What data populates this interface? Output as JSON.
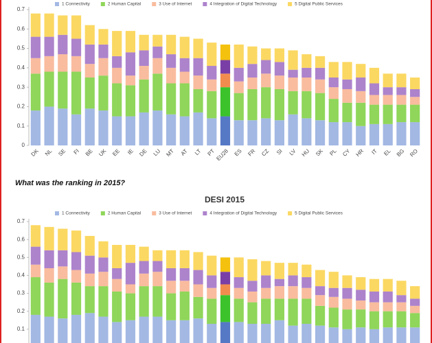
{
  "question": "What was the ranking in 2015?",
  "chart_data": [
    {
      "type": "stacked_bar",
      "categories": [
        "DK",
        "NL",
        "SE",
        "FI",
        "BE",
        "UK",
        "EE",
        "IE",
        "DE",
        "LU",
        "MT",
        "AT",
        "LT",
        "PT",
        "EU28",
        "ES",
        "FR",
        "CZ",
        "SI",
        "LV",
        "HU",
        "SK",
        "PL",
        "CY",
        "HR",
        "IT",
        "EL",
        "BG",
        "RO"
      ],
      "ylim": [
        0,
        0.7
      ],
      "yticks": [
        0,
        0.1,
        0.2,
        0.3,
        0.4,
        0.5,
        0.6,
        0.7
      ],
      "grid": false,
      "legend": "top",
      "highlight": 14,
      "series": [
        {
          "name": "1 Connectivity",
          "color": "#a3b8e3",
          "highlight_color": "#5679c6",
          "values": [
            0.18,
            0.2,
            0.19,
            0.16,
            0.19,
            0.18,
            0.15,
            0.15,
            0.17,
            0.18,
            0.16,
            0.15,
            0.17,
            0.14,
            0.15,
            0.13,
            0.13,
            0.14,
            0.13,
            0.16,
            0.14,
            0.13,
            0.12,
            0.12,
            0.1,
            0.11,
            0.11,
            0.12,
            0.12
          ]
        },
        {
          "name": "2 Human Capital",
          "color": "#8fd65a",
          "highlight_color": "#3cc22a",
          "values": [
            0.19,
            0.18,
            0.19,
            0.22,
            0.16,
            0.18,
            0.17,
            0.16,
            0.17,
            0.19,
            0.16,
            0.17,
            0.12,
            0.14,
            0.15,
            0.14,
            0.16,
            0.16,
            0.16,
            0.12,
            0.14,
            0.14,
            0.12,
            0.1,
            0.12,
            0.1,
            0.1,
            0.09,
            0.09
          ]
        },
        {
          "name": "3 Use of Internet",
          "color": "#f9bc9e",
          "highlight_color": "#f28c4e",
          "values": [
            0.08,
            0.08,
            0.09,
            0.08,
            0.07,
            0.09,
            0.08,
            0.05,
            0.07,
            0.08,
            0.08,
            0.06,
            0.07,
            0.06,
            0.07,
            0.06,
            0.06,
            0.07,
            0.07,
            0.07,
            0.07,
            0.07,
            0.06,
            0.07,
            0.06,
            0.05,
            0.05,
            0.05,
            0.04
          ]
        },
        {
          "name": "4 Integration of Digital Technology",
          "color": "#ad83cc",
          "highlight_color": "#7a3fa6",
          "values": [
            0.11,
            0.1,
            0.1,
            0.09,
            0.1,
            0.07,
            0.06,
            0.12,
            0.08,
            0.06,
            0.07,
            0.07,
            0.09,
            0.07,
            0.07,
            0.07,
            0.07,
            0.07,
            0.07,
            0.04,
            0.05,
            0.06,
            0.05,
            0.05,
            0.07,
            0.06,
            0.04,
            0.04,
            0.04
          ]
        },
        {
          "name": "5 Digital Public Services",
          "color": "#fbd862",
          "highlight_color": "#f4c10f",
          "values": [
            0.12,
            0.12,
            0.1,
            0.12,
            0.1,
            0.08,
            0.13,
            0.11,
            0.08,
            0.06,
            0.1,
            0.11,
            0.1,
            0.12,
            0.08,
            0.12,
            0.09,
            0.06,
            0.07,
            0.1,
            0.07,
            0.06,
            0.08,
            0.09,
            0.07,
            0.08,
            0.07,
            0.07,
            0.06
          ]
        }
      ]
    },
    {
      "type": "stacked_bar",
      "title": "DESI 2015",
      "categories": [
        null,
        null,
        null,
        null,
        null,
        null,
        null,
        null,
        null,
        null,
        null,
        null,
        null,
        null,
        null,
        null,
        null,
        null,
        null,
        null,
        null,
        null,
        null,
        null,
        null,
        null,
        null,
        null,
        null
      ],
      "ylim": [
        0,
        0.7
      ],
      "yticks": [
        0.1,
        0.2,
        0.3,
        0.4,
        0.5,
        0.6,
        0.7
      ],
      "grid": false,
      "legend": "top",
      "highlight": 14,
      "series": [
        {
          "name": "1 Connectivity",
          "color": "#a3b8e3",
          "highlight_color": "#5679c6",
          "values": [
            0.18,
            0.17,
            0.16,
            0.18,
            0.19,
            0.17,
            0.14,
            0.15,
            0.17,
            0.17,
            0.15,
            0.15,
            0.16,
            0.13,
            0.14,
            0.14,
            0.13,
            0.13,
            0.15,
            0.12,
            0.13,
            0.12,
            0.11,
            0.1,
            0.11,
            0.1,
            0.11,
            0.11,
            0.11
          ]
        },
        {
          "name": "2 Human Capital",
          "color": "#8fd65a",
          "highlight_color": "#3cc22a",
          "values": [
            0.21,
            0.19,
            0.22,
            0.18,
            0.15,
            0.17,
            0.17,
            0.15,
            0.17,
            0.17,
            0.15,
            0.16,
            0.12,
            0.14,
            0.15,
            0.13,
            0.12,
            0.14,
            0.12,
            0.15,
            0.14,
            0.11,
            0.11,
            0.11,
            0.1,
            0.1,
            0.09,
            0.09,
            0.08
          ]
        },
        {
          "name": "3 Use of Internet",
          "color": "#f9bc9e",
          "highlight_color": "#f28c4e",
          "values": [
            0.07,
            0.08,
            0.07,
            0.07,
            0.07,
            0.08,
            0.07,
            0.05,
            0.07,
            0.08,
            0.07,
            0.06,
            0.07,
            0.06,
            0.06,
            0.06,
            0.06,
            0.06,
            0.07,
            0.07,
            0.06,
            0.06,
            0.06,
            0.06,
            0.05,
            0.05,
            0.05,
            0.05,
            0.04
          ]
        },
        {
          "name": "4 Integration of Digital Technology",
          "color": "#ad83cc",
          "highlight_color": "#7a3fa6",
          "values": [
            0.1,
            0.1,
            0.09,
            0.1,
            0.1,
            0.08,
            0.06,
            0.12,
            0.07,
            0.06,
            0.07,
            0.07,
            0.08,
            0.07,
            0.07,
            0.06,
            0.06,
            0.07,
            0.04,
            0.06,
            0.06,
            0.05,
            0.05,
            0.06,
            0.06,
            0.06,
            0.06,
            0.04,
            0.04
          ]
        },
        {
          "name": "5 Digital Public Services",
          "color": "#fbd862",
          "highlight_color": "#f4c10f",
          "values": [
            0.12,
            0.13,
            0.12,
            0.12,
            0.11,
            0.09,
            0.13,
            0.1,
            0.08,
            0.06,
            0.1,
            0.1,
            0.1,
            0.11,
            0.08,
            0.11,
            0.12,
            0.08,
            0.09,
            0.07,
            0.07,
            0.09,
            0.09,
            0.07,
            0.07,
            0.07,
            0.07,
            0.08,
            0.07
          ]
        }
      ]
    }
  ]
}
